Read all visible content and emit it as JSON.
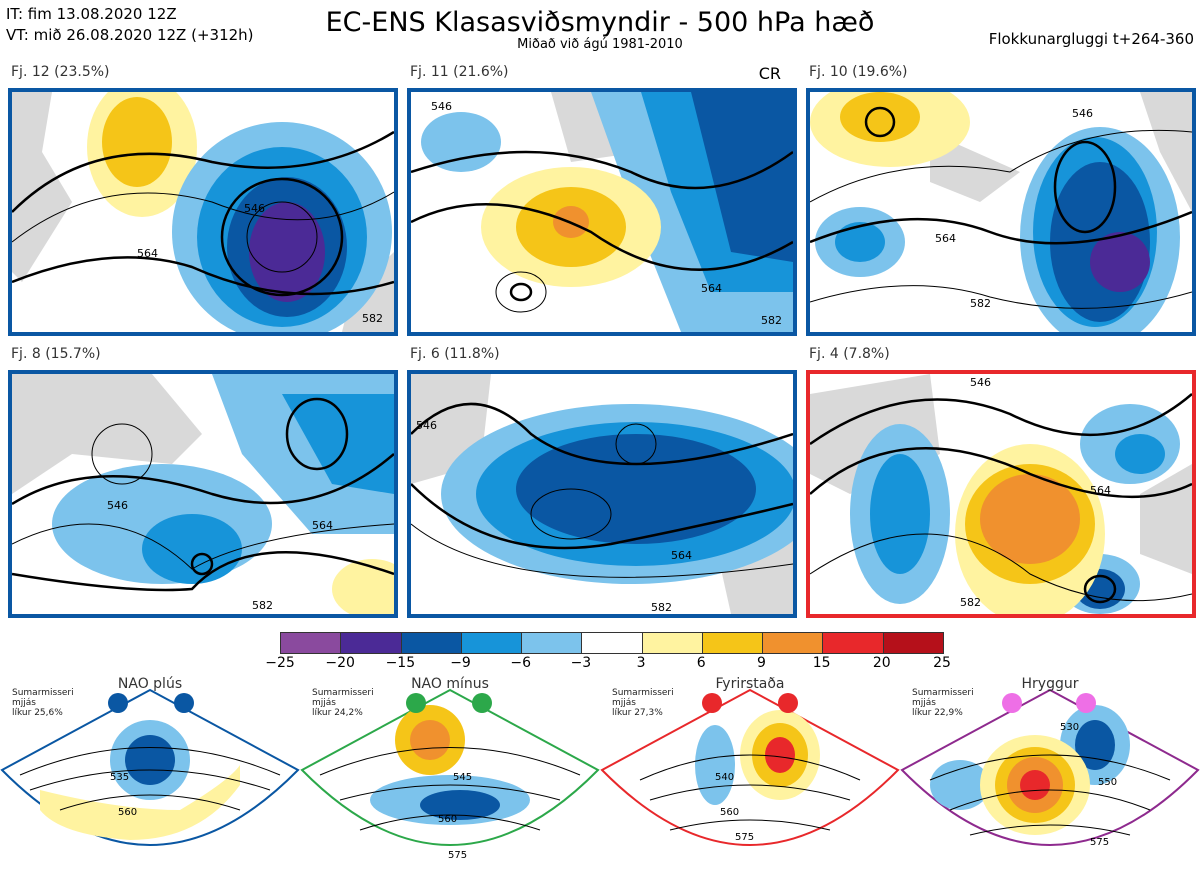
{
  "header": {
    "it": "IT: fim 13.08.2020 12Z",
    "vt": "VT: mið 26.08.2020 12Z  (+312h)",
    "title": "EC-ENS Klasasviðsmyndir - 500 hPa hæð",
    "subtitle": "Miðað við ágú 1981-2010",
    "window": "Flokkunargluggi t+264-360"
  },
  "clusters": [
    {
      "label": "Fj. 12 (23.5%)",
      "code": "",
      "border": "#0a57a3"
    },
    {
      "label": "Fj. 11 (21.6%)",
      "code": "CR",
      "border": "#0a57a3"
    },
    {
      "label": "Fj. 10 (19.6%)",
      "code": "",
      "border": "#0a57a3"
    },
    {
      "label": "Fj. 8 (15.7%)",
      "code": "",
      "border": "#0a57a3"
    },
    {
      "label": "Fj. 6 (11.8%)",
      "code": "",
      "border": "#0a57a3"
    },
    {
      "label": "Fj. 4 (7.8%)",
      "code": "",
      "border": "#e8282b"
    }
  ],
  "contour_labels": {
    "c1": "546",
    "c2": "564",
    "c3": "582",
    "c4": "546",
    "c5": "564",
    "c6": "582",
    "c7": "546",
    "c8": "564",
    "c9": "582",
    "c10": "546",
    "c11": "564",
    "c12": "582",
    "c13": "546",
    "c14": "564",
    "c15": "582",
    "c16": "546",
    "c17": "564",
    "c18": "582"
  },
  "colorbar": {
    "colors": [
      "#8a4a9e",
      "#4b2a96",
      "#0a57a3",
      "#1794d9",
      "#7cc3ec",
      "#ffffff",
      "#fff3a0",
      "#f5c518",
      "#f0912e",
      "#e8282b",
      "#b5101a"
    ],
    "ticks": [
      "−25",
      "−20",
      "−15",
      "−9",
      "−6",
      "−3",
      "3",
      "6",
      "9",
      "15",
      "20",
      "25"
    ]
  },
  "regimes": [
    {
      "name": "NAO plús",
      "note": "Sumarmisseri\nmjjás\nlíkur 25,6%",
      "color": "#0a57a3",
      "labels": [
        "535",
        "560"
      ]
    },
    {
      "name": "NAO mínus",
      "note": "Sumarmisseri\nmjjás\nlíkur 24,2%",
      "color": "#2ca84a",
      "labels": [
        "545",
        "560",
        "575"
      ]
    },
    {
      "name": "Fyrirstaða",
      "note": "Sumarmisseri\nmjjás\nlíkur 27,3%",
      "color": "#e8282b",
      "labels": [
        "540",
        "560",
        "575"
      ]
    },
    {
      "name": "Hryggur",
      "note": "Sumarmisseri\nmjjás\nlíkur 22,9%",
      "color": "#ee6fe6",
      "labels": [
        "530",
        "550",
        "575"
      ]
    }
  ]
}
